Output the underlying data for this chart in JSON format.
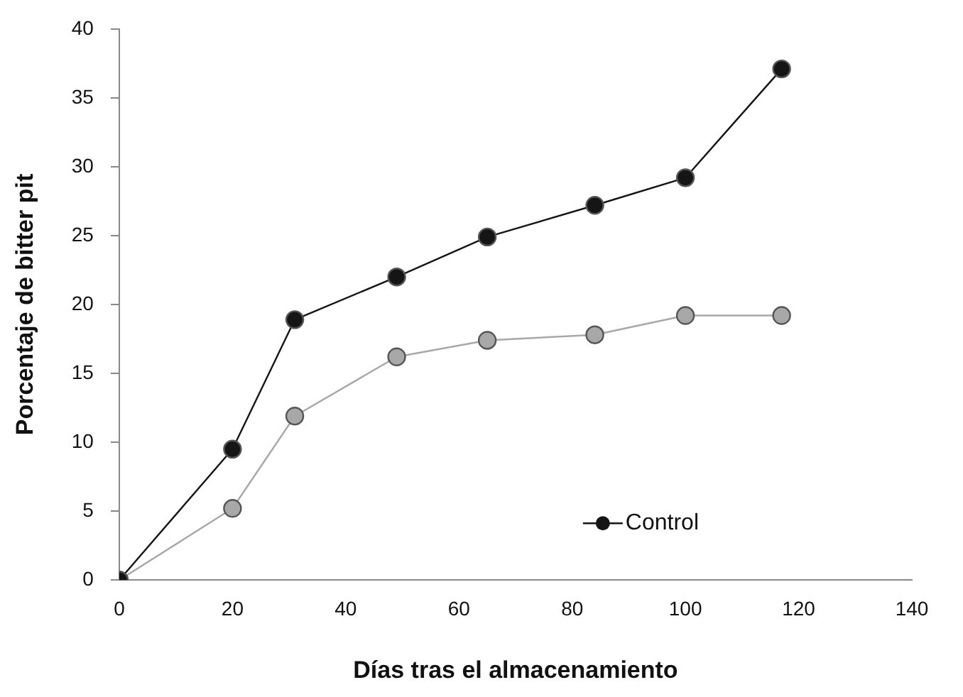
{
  "chart_data": {
    "type": "line",
    "xlabel": "Días tras el almacenamiento",
    "ylabel": "Porcentaje de bitter pit",
    "xlim": [
      0,
      140
    ],
    "xticks": [
      0,
      20,
      40,
      60,
      80,
      100,
      120,
      140
    ],
    "ylim": [
      0,
      40
    ],
    "yticks": [
      0,
      5,
      10,
      15,
      20,
      25,
      30,
      35,
      40
    ],
    "grid": false,
    "legend": "bottom right",
    "marker": "circle",
    "series": [
      {
        "name": "Control",
        "color": "#151515",
        "x": [
          0,
          20,
          31,
          49,
          65,
          84,
          100,
          117
        ],
        "values": [
          0,
          9.5,
          18.9,
          22,
          24.9,
          27.2,
          29.2,
          37.1
        ]
      },
      {
        "color": "#a8a8a8",
        "x": [
          0,
          20,
          31,
          49,
          65,
          84,
          100,
          117
        ],
        "values": [
          0,
          5.2,
          11.9,
          16.2,
          17.4,
          17.8,
          19.2,
          19.2
        ]
      }
    ]
  }
}
